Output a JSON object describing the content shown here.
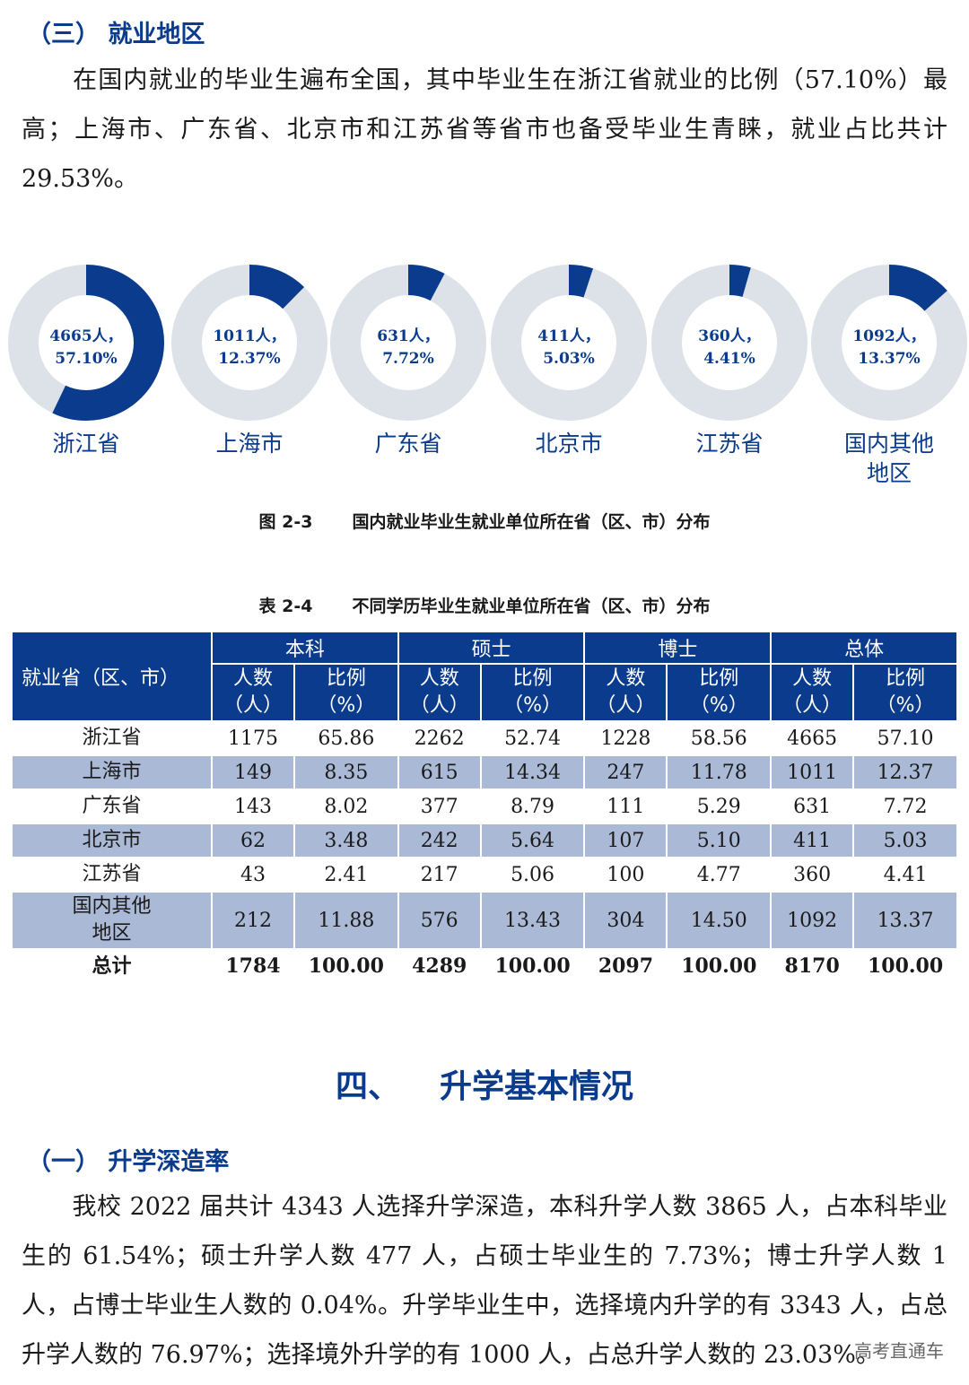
{
  "section3": {
    "title": "（三） 就业地区",
    "paragraph": "在国内就业的毕业生遍布全国，其中毕业生在浙江省就业的比例（57.10%）最高；上海市、广东省、北京市和江苏省等省市也备受毕业生青睐，就业占比共计29.53%。"
  },
  "colors": {
    "accent": "#0a3b8c",
    "donut_track": "#dde1e8",
    "row_alt": "#aab9d6"
  },
  "chart_data": {
    "type": "pie",
    "categories": [
      "浙江省",
      "上海市",
      "广东省",
      "北京市",
      "江苏省",
      "国内其他地区"
    ],
    "counts": [
      4665,
      1011,
      631,
      411,
      360,
      1092
    ],
    "values": [
      57.1,
      12.37,
      7.72,
      5.03,
      4.41,
      13.37
    ],
    "center_labels": [
      [
        "4665人，",
        "57.10%"
      ],
      [
        "1011人，",
        "12.37%"
      ],
      [
        "631人，",
        "7.72%"
      ],
      [
        "411人，",
        "5.03%"
      ],
      [
        "360人，",
        "4.41%"
      ],
      [
        "1092人，",
        "13.37%"
      ]
    ],
    "category_lines": [
      [
        "浙江省"
      ],
      [
        "上海市"
      ],
      [
        "广东省"
      ],
      [
        "北京市"
      ],
      [
        "江苏省"
      ],
      [
        "国内其他",
        "地区"
      ]
    ]
  },
  "figure_caption": {
    "number": "图 2-3",
    "text": "国内就业毕业生就业单位所在省（区、市）分布"
  },
  "table_caption": {
    "number": "表 2-4",
    "text": "不同学历毕业生就业单位所在省（区、市）分布"
  },
  "table": {
    "row_header": "就业省（区、市）",
    "groups": [
      "本科",
      "硕士",
      "博士",
      "总体"
    ],
    "sub_headers": [
      "人数（人）",
      "比例（%）"
    ],
    "sub_header_lines": [
      [
        "人数",
        "（人）"
      ],
      [
        "比例",
        "（%）"
      ]
    ],
    "rows": [
      {
        "name": "浙江省",
        "cells": [
          "1175",
          "65.86",
          "2262",
          "52.74",
          "1228",
          "58.56",
          "4665",
          "57.10"
        ]
      },
      {
        "name": "上海市",
        "cells": [
          "149",
          "8.35",
          "615",
          "14.34",
          "247",
          "11.78",
          "1011",
          "12.37"
        ]
      },
      {
        "name": "广东省",
        "cells": [
          "143",
          "8.02",
          "377",
          "8.79",
          "111",
          "5.29",
          "631",
          "7.72"
        ]
      },
      {
        "name": "北京市",
        "cells": [
          "62",
          "3.48",
          "242",
          "5.64",
          "107",
          "5.10",
          "411",
          "5.03"
        ]
      },
      {
        "name": "江苏省",
        "cells": [
          "43",
          "2.41",
          "217",
          "5.06",
          "100",
          "4.77",
          "360",
          "4.41"
        ]
      },
      {
        "name": "国内其他地区",
        "name_lines": [
          "国内其他",
          "地区"
        ],
        "cells": [
          "212",
          "11.88",
          "576",
          "13.43",
          "304",
          "14.50",
          "1092",
          "13.37"
        ]
      }
    ],
    "total": {
      "name": "总计",
      "cells": [
        "1784",
        "100.00",
        "4289",
        "100.00",
        "2097",
        "100.00",
        "8170",
        "100.00"
      ]
    }
  },
  "chapter4": {
    "number": "四、",
    "title": "升学基本情况"
  },
  "section4_1": {
    "title": "（一） 升学深造率",
    "paragraph": "我校 2022 届共计 4343 人选择升学深造，本科升学人数 3865 人，占本科毕业生的 61.54%；硕士升学人数 477 人，占硕士毕业生的 7.73%；博士升学人数 1 人，占博士毕业生人数的 0.04%。升学毕业生中，选择境内升学的有 3343 人，占总升学人数的 76.97%；选择境外升学的有 1000 人，占总升学人数的 23.03%。"
  },
  "watermark": "高考直通车"
}
